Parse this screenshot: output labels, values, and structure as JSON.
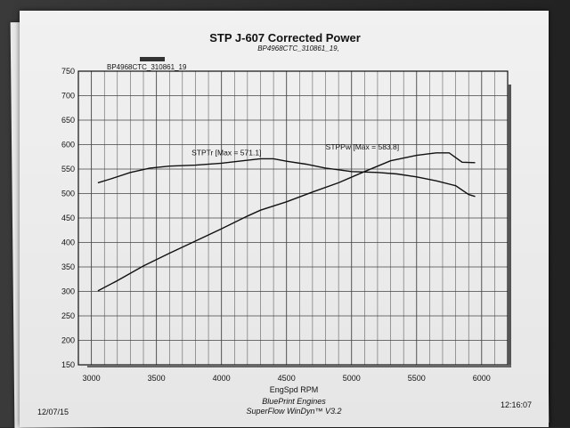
{
  "chart_data": {
    "type": "line",
    "title": "STP J-607 Corrected Power",
    "subtitle": "BP4968CTC_310861_19,",
    "legend_label": "BP4968CTC_310861_19",
    "xlabel": "EngSpd RPM",
    "ylabel": "",
    "xlim": [
      2900,
      6200
    ],
    "ylim": [
      150,
      750
    ],
    "x_ticks": [
      3000,
      3500,
      4000,
      4500,
      5000,
      5500,
      6000
    ],
    "y_ticks": [
      150,
      200,
      250,
      300,
      350,
      400,
      450,
      500,
      550,
      600,
      650,
      700,
      750
    ],
    "grid": true,
    "series": [
      {
        "name": "STPTrq",
        "label": "STPTr [Max = 571.1]",
        "x": [
          3050,
          3150,
          3300,
          3450,
          3600,
          3800,
          4000,
          4200,
          4300,
          4400,
          4500,
          4650,
          4800,
          5000,
          5200,
          5350,
          5500,
          5650,
          5800,
          5900,
          5950
        ],
        "y": [
          522,
          530,
          543,
          552,
          556,
          558,
          562,
          568,
          571,
          571,
          566,
          560,
          552,
          545,
          543,
          540,
          534,
          526,
          516,
          498,
          494
        ]
      },
      {
        "name": "STPPwr",
        "label": "STPPw [Max = 583.8]",
        "x": [
          3050,
          3200,
          3400,
          3600,
          3800,
          4000,
          4200,
          4300,
          4500,
          4700,
          4900,
          5100,
          5300,
          5500,
          5650,
          5750,
          5850,
          5950
        ],
        "y": [
          301,
          322,
          352,
          378,
          403,
          428,
          454,
          466,
          483,
          503,
          522,
          545,
          567,
          578,
          583,
          583,
          564,
          563
        ]
      }
    ]
  },
  "footer": {
    "date": "12/07/15",
    "time": "12:16:07",
    "line1": "BluePrint Engines",
    "line2": "SuperFlow WinDyn™ V3.2"
  },
  "colors": {
    "line": "#111111",
    "grid": "#444444",
    "legend_swatch": "#333333"
  }
}
